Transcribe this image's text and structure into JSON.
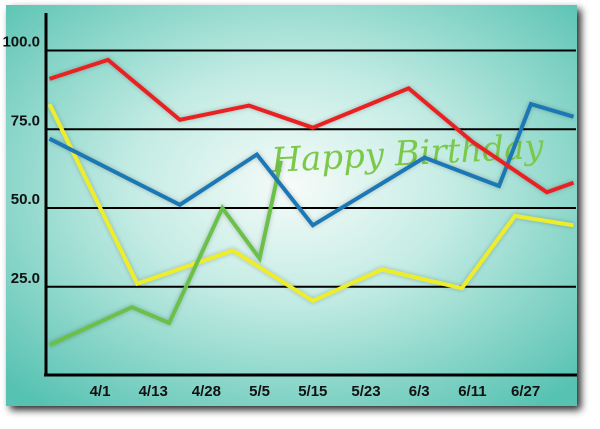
{
  "chart_data": {
    "type": "line",
    "title": "",
    "xlabel": "",
    "ylabel": "",
    "ylim": [
      0,
      110
    ],
    "grid": true,
    "yticks": [
      25.0,
      50.0,
      75.0,
      100.0
    ],
    "ytick_labels": [
      "25.0",
      "50.0",
      "75.0",
      "100.0"
    ],
    "xticks": [
      "4/1",
      "4/13",
      "4/28",
      "5/5",
      "5/15",
      "5/23",
      "6/3",
      "6/11",
      "6/27"
    ],
    "annotation": "Happy Birthday",
    "series": [
      {
        "color": "#e82222",
        "points": [
          [
            -0.95,
            91
          ],
          [
            0.15,
            97
          ],
          [
            1.5,
            78
          ],
          [
            2.8,
            82.5
          ],
          [
            4.0,
            75.5
          ],
          [
            5.8,
            88
          ],
          [
            7.0,
            71
          ],
          [
            8.4,
            55
          ],
          [
            8.9,
            58
          ]
        ]
      },
      {
        "color": "#1a78b4",
        "points": [
          [
            -0.95,
            72
          ],
          [
            1.5,
            51
          ],
          [
            2.95,
            67
          ],
          [
            4.0,
            44.5
          ],
          [
            6.1,
            66
          ],
          [
            7.5,
            57
          ],
          [
            8.1,
            83
          ],
          [
            8.9,
            79
          ]
        ]
      },
      {
        "color": "#eded2a",
        "points": [
          [
            -0.95,
            83
          ],
          [
            0.7,
            26
          ],
          [
            2.5,
            36.5
          ],
          [
            4.0,
            20.5
          ],
          [
            5.3,
            30.5
          ],
          [
            6.8,
            24.5
          ],
          [
            7.8,
            47.5
          ],
          [
            8.9,
            44.5
          ]
        ]
      },
      {
        "color": "#6ac04a",
        "points": [
          [
            -0.95,
            6.5
          ],
          [
            0.6,
            18.5
          ],
          [
            1.3,
            13.5
          ],
          [
            2.3,
            50
          ],
          [
            3.0,
            34
          ],
          [
            3.4,
            65
          ]
        ]
      }
    ]
  }
}
